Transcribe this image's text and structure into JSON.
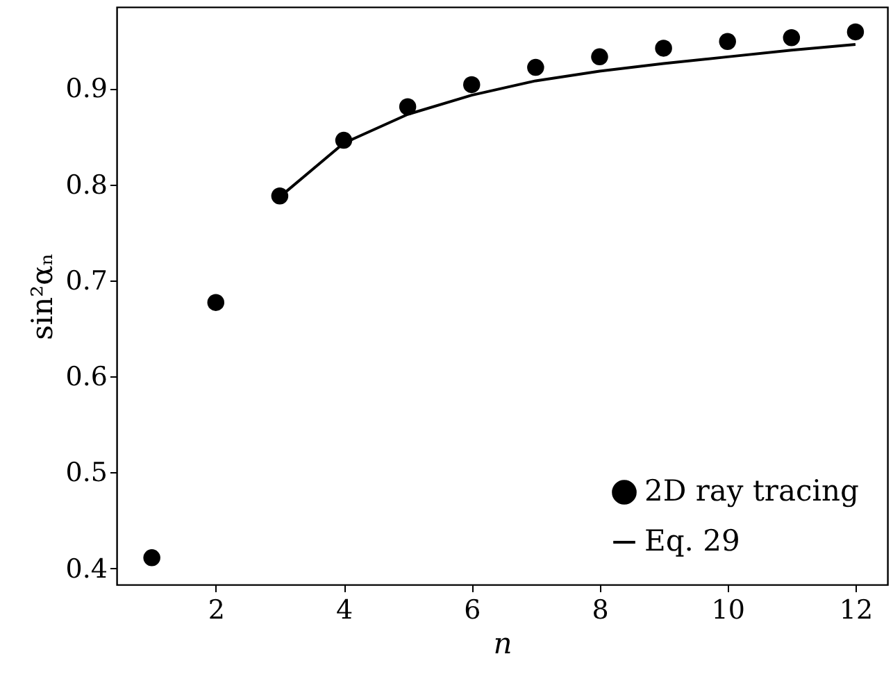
{
  "chart_data": {
    "type": "scatter",
    "xlabel": "n",
    "ylabel": "sin²αₙ",
    "xlim": [
      0.45,
      12.5
    ],
    "ylim": [
      0.383,
      0.985
    ],
    "xticks": [
      2,
      4,
      6,
      8,
      10,
      12
    ],
    "yticks": [
      0.4,
      0.5,
      0.6,
      0.7,
      0.8,
      0.9
    ],
    "grid": false,
    "legend": "bottom right",
    "series": [
      {
        "name": "2D ray tracing",
        "marker": "circle",
        "color": "#000000",
        "x": [
          1,
          2,
          3,
          4,
          5,
          6,
          7,
          8,
          9,
          10,
          11,
          12
        ],
        "values": [
          0.411,
          0.677,
          0.788,
          0.846,
          0.881,
          0.904,
          0.922,
          0.933,
          0.942,
          0.949,
          0.953,
          0.959
        ]
      },
      {
        "name": "Eq. 29",
        "type": "line",
        "color": "#000000",
        "line_style": "solid",
        "x": [
          3,
          4,
          5,
          6,
          7,
          8,
          9,
          10,
          11,
          12
        ],
        "values": [
          0.787,
          0.843,
          0.873,
          0.893,
          0.908,
          0.918,
          0.926,
          0.933,
          0.94,
          0.946
        ]
      }
    ]
  }
}
